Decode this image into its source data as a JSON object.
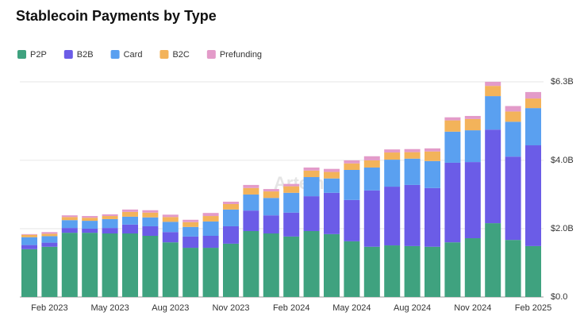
{
  "chart_data": {
    "type": "stacked_bar",
    "title": "Stablecoin Payments by Type",
    "watermark": "Artemis",
    "categories": [
      null,
      "Feb 2023",
      null,
      null,
      "May 2023",
      null,
      null,
      "Aug 2023",
      null,
      null,
      "Nov 2023",
      null,
      null,
      "Feb 2024",
      null,
      null,
      "May 2024",
      null,
      null,
      "Aug 2024",
      null,
      null,
      "Nov 2024",
      null,
      null,
      "Feb 2025"
    ],
    "series": [
      {
        "name": "P2P",
        "color": "#3fa27f",
        "values": [
          1.4,
          1.47,
          1.88,
          1.88,
          1.86,
          1.86,
          1.79,
          1.6,
          1.44,
          1.44,
          1.56,
          1.93,
          1.86,
          1.77,
          1.93,
          1.84,
          1.63,
          1.47,
          1.51,
          1.49,
          1.47,
          1.6,
          1.72,
          2.16,
          1.67,
          1.49
        ]
      },
      {
        "name": "B2B",
        "color": "#6b5ce7",
        "values": [
          0.12,
          0.12,
          0.14,
          0.12,
          0.16,
          0.26,
          0.28,
          0.3,
          0.33,
          0.35,
          0.51,
          0.6,
          0.53,
          0.7,
          1.02,
          1.21,
          1.21,
          1.65,
          1.72,
          1.79,
          1.72,
          2.33,
          2.23,
          2.74,
          2.44,
          2.95
        ]
      },
      {
        "name": "Card",
        "color": "#5aa0f0",
        "values": [
          0.23,
          0.19,
          0.23,
          0.23,
          0.26,
          0.23,
          0.26,
          0.3,
          0.28,
          0.42,
          0.49,
          0.47,
          0.51,
          0.58,
          0.56,
          0.42,
          0.88,
          0.67,
          0.79,
          0.77,
          0.79,
          0.91,
          0.93,
          0.98,
          1.02,
          1.09
        ]
      },
      {
        "name": "B2C",
        "color": "#f3b35a",
        "values": [
          0.07,
          0.07,
          0.09,
          0.09,
          0.09,
          0.14,
          0.14,
          0.14,
          0.14,
          0.16,
          0.16,
          0.19,
          0.19,
          0.19,
          0.19,
          0.19,
          0.19,
          0.21,
          0.21,
          0.19,
          0.28,
          0.33,
          0.33,
          0.3,
          0.3,
          0.28
        ]
      },
      {
        "name": "Prefunding",
        "color": "#e39bc9",
        "values": [
          0.02,
          0.05,
          0.05,
          0.05,
          0.05,
          0.07,
          0.07,
          0.07,
          0.07,
          0.09,
          0.07,
          0.09,
          0.07,
          0.07,
          0.09,
          0.09,
          0.09,
          0.12,
          0.09,
          0.09,
          0.09,
          0.09,
          0.09,
          0.12,
          0.16,
          0.19
        ]
      }
    ],
    "ylim": [
      0,
      6.3
    ],
    "yticks": [
      {
        "value": 0,
        "label": "$0.0"
      },
      {
        "value": 2,
        "label": "$2.0B"
      },
      {
        "value": 4,
        "label": "$4.0B"
      },
      {
        "value": 6.3,
        "label": "$6.3B"
      }
    ],
    "grid": true,
    "legend": "top-left"
  }
}
